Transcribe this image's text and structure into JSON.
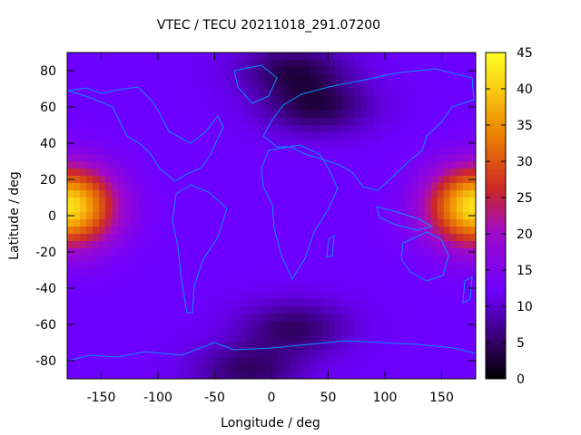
{
  "title": "VTEC / TECU 20211018_291.07200",
  "chart_data": {
    "type": "heatmap",
    "title": "VTEC / TECU 20211018_291.07200",
    "xlabel": "Longitude / deg",
    "ylabel": "Latitude / deg",
    "xlim": [
      -180,
      180
    ],
    "ylim": [
      -90,
      90
    ],
    "x_ticks": [
      "-150",
      "-100",
      "-50",
      "0",
      "50",
      "100",
      "150"
    ],
    "y_ticks": [
      "80",
      "60",
      "40",
      "20",
      "0",
      "-20",
      "-40",
      "-60",
      "-80"
    ],
    "colorbar": {
      "range": [
        0,
        45
      ],
      "ticks": [
        "45",
        "40",
        "35",
        "30",
        "25",
        "20",
        "15",
        "10",
        "5",
        "0"
      ]
    },
    "field_features": {
      "background_tecu": 12,
      "peaks": [
        {
          "lon": -180,
          "lat": 5,
          "tecu": 42
        },
        {
          "lon": 180,
          "lat": 5,
          "tecu": 42
        }
      ],
      "lows": [
        {
          "lon": 20,
          "lat": 80,
          "tecu": 4
        },
        {
          "lon": 40,
          "lat": 60,
          "tecu": 4
        },
        {
          "lon": 20,
          "lat": -62,
          "tecu": 5
        },
        {
          "lon": -20,
          "lat": -85,
          "tecu": 5
        }
      ]
    },
    "grid": false,
    "colormap": "gnuplot-black-purple-red-yellow",
    "overlay": "coastlines",
    "coastline_color": "#0a8fff"
  }
}
